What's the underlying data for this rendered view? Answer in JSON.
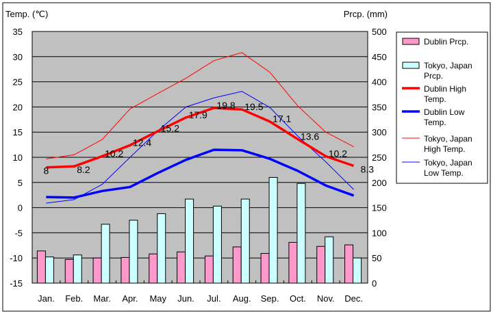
{
  "chart_data": {
    "type": "bar+line",
    "left_axis_label": "Temp. (℃)",
    "right_axis_label": "Prcp. (mm)",
    "left_ylim": [
      -15,
      35
    ],
    "right_ylim": [
      0,
      500
    ],
    "left_ticks": [
      "35",
      "30",
      "25",
      "20",
      "15",
      "10",
      "5",
      "0",
      "-5",
      "-10",
      "-15"
    ],
    "right_ticks": [
      "500",
      "450",
      "400",
      "350",
      "300",
      "250",
      "200",
      "150",
      "100",
      "50",
      "0"
    ],
    "categories": [
      "Jan.",
      "Feb.",
      "Mar.",
      "Apr.",
      "May",
      "Jun.",
      "Jul.",
      "Aug.",
      "Sep.",
      "Oct.",
      "Nov.",
      "Dec."
    ],
    "grid": true,
    "legend_placement": "right",
    "bar_series": [
      {
        "name": "Dublin Prcp.",
        "color": "#ff99cc",
        "values": [
          64,
          47,
          50,
          51,
          58,
          62,
          54,
          72,
          59,
          81,
          73,
          76
        ]
      },
      {
        "name": "Tokyo, Japan Prcp.",
        "color": "#ccffff",
        "values": [
          52,
          56,
          117,
          125,
          138,
          167,
          153,
          167,
          210,
          198,
          92,
          50
        ]
      }
    ],
    "line_series": [
      {
        "name": "Dublin High Temp.",
        "color": "#ff0000",
        "width": "thick",
        "values": [
          8,
          8.2,
          10.2,
          12.4,
          15.2,
          17.9,
          19.8,
          19.5,
          17.1,
          13.6,
          10.2,
          8.3
        ],
        "labels": [
          "8",
          "8.2",
          "10.2",
          "12.4",
          "15.2",
          "17.9",
          "19.8",
          "19.5",
          "17.1",
          "13.6",
          "10.2",
          "8.3"
        ]
      },
      {
        "name": "Dublin Low Temp.",
        "color": "#0000ff",
        "width": "thick",
        "values": [
          2.1,
          2.0,
          3.3,
          4.1,
          6.9,
          9.5,
          11.5,
          11.4,
          9.7,
          7.3,
          4.4,
          2.4
        ]
      },
      {
        "name": "Tokyo, Japan High Temp.",
        "color": "#ff0000",
        "width": "thin",
        "values": [
          9.7,
          10.5,
          13.5,
          19.6,
          22.7,
          25.7,
          29.2,
          30.8,
          26.9,
          20.2,
          15.0,
          12.1
        ]
      },
      {
        "name": "Tokyo, Japan Low Temp.",
        "color": "#0000ff",
        "width": "thin",
        "values": [
          0.9,
          1.6,
          4.6,
          10.0,
          15.3,
          20.0,
          21.8,
          23.1,
          19.9,
          14.2,
          9.1,
          3.6
        ]
      }
    ],
    "legend": [
      [
        "Dublin Prcp."
      ],
      [
        "Tokyo, Japan",
        "Prcp."
      ],
      [
        "Dublin High",
        "Temp."
      ],
      [
        "Dublin Low",
        "Temp."
      ],
      [
        "Tokyo, Japan",
        "High Temp."
      ],
      [
        "Tokyo, Japan",
        "Low Temp."
      ]
    ]
  }
}
